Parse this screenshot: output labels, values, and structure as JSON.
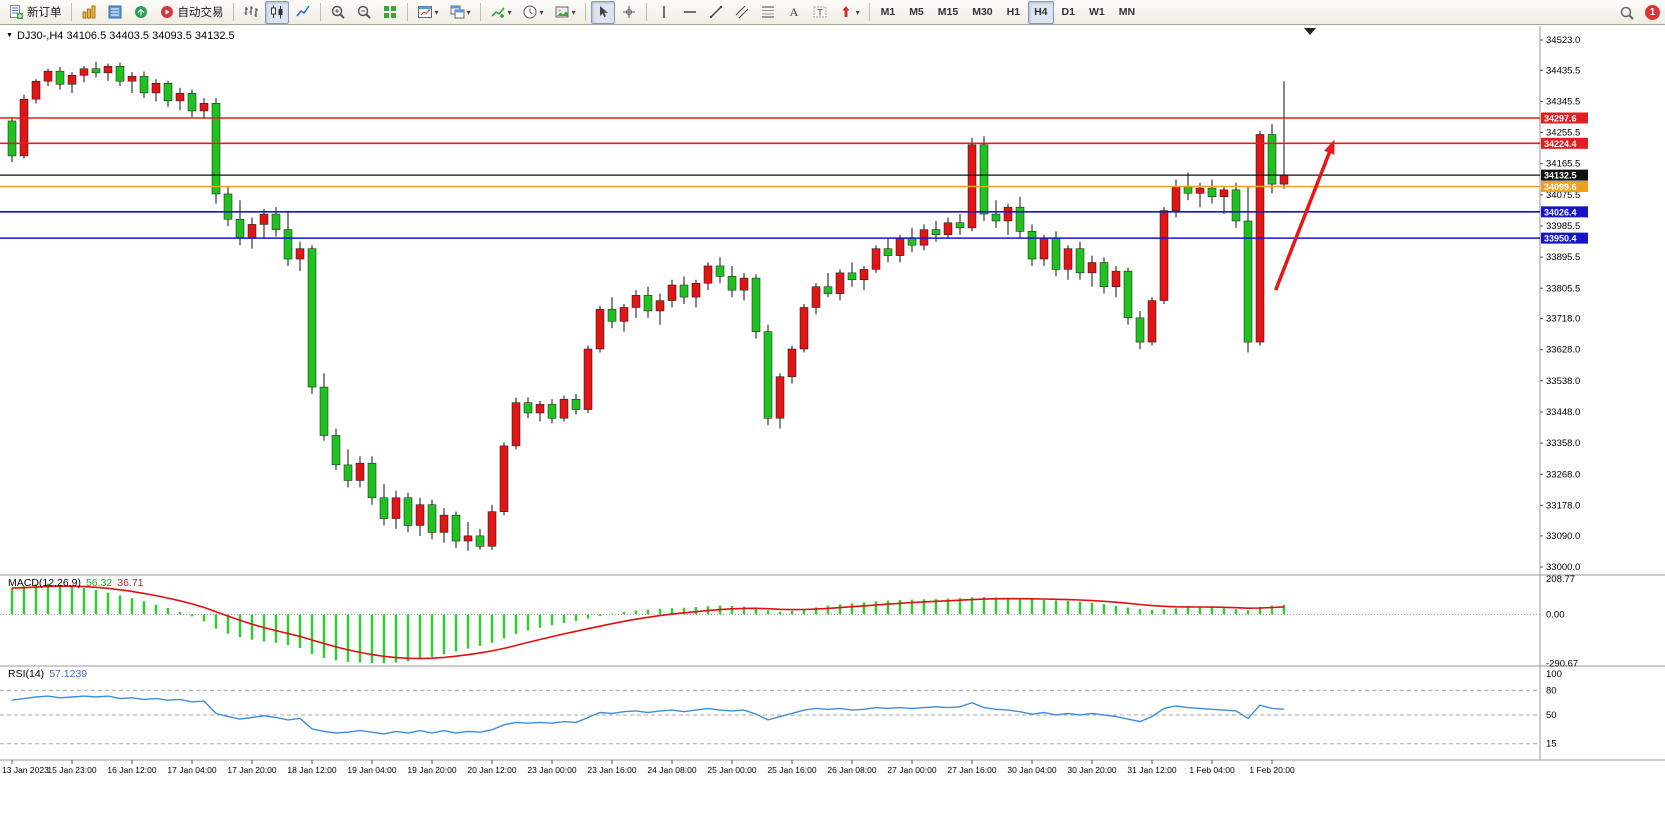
{
  "toolbar": {
    "badge_count": "1",
    "active_timeframe": "H4",
    "timeframes": [
      "M1",
      "M5",
      "M15",
      "M30",
      "H1",
      "H4",
      "D1",
      "W1",
      "MN"
    ],
    "groups": [
      {
        "items": [
          {
            "name": "new-order-button",
            "icon": "new-order",
            "label": "新订单"
          }
        ]
      },
      {
        "items": [
          {
            "name": "chart-window-button",
            "icon": "chart-window"
          },
          {
            "name": "market-watch-button",
            "icon": "market-watch"
          },
          {
            "name": "navigator-button",
            "icon": "navigator"
          },
          {
            "name": "auto-trading-button",
            "icon": "auto-trading",
            "label": "自动交易"
          }
        ]
      },
      {
        "items": [
          {
            "name": "bar-chart-button",
            "icon": "bar-chart"
          },
          {
            "name": "candlestick-chart-button",
            "icon": "candlestick-chart",
            "active": true
          },
          {
            "name": "line-chart-button",
            "icon": "line-chart"
          }
        ]
      },
      {
        "items": [
          {
            "name": "zoom-in-button",
            "icon": "zoom-in"
          },
          {
            "name": "zoom-out-button",
            "icon": "zoom-out"
          },
          {
            "name": "tile-windows-button",
            "icon": "tile-windows"
          }
        ]
      },
      {
        "items": [
          {
            "name": "new-chart-button",
            "icon": "new-chart",
            "dropdown": true
          },
          {
            "name": "profiles-button",
            "icon": "cascade-windows",
            "dropdown": true
          }
        ]
      },
      {
        "items": [
          {
            "name": "indicators-button",
            "icon": "indicators",
            "dropdown": true
          },
          {
            "name": "periods-button",
            "icon": "periods",
            "dropdown": true
          },
          {
            "name": "templates-button",
            "icon": "templates",
            "dropdown": true
          }
        ]
      },
      {
        "items": [
          {
            "name": "cursor-button",
            "icon": "cursor",
            "active": true
          },
          {
            "name": "crosshair-button",
            "icon": "crosshair"
          }
        ]
      },
      {
        "items": [
          {
            "name": "vertical-line-button",
            "icon": "vertical-line"
          },
          {
            "name": "horizontal-line-button",
            "icon": "horizontal-line"
          },
          {
            "name": "trendline-button",
            "icon": "trendline"
          },
          {
            "name": "channel-button",
            "icon": "channel"
          },
          {
            "name": "fibonacci-button",
            "icon": "fibonacci"
          },
          {
            "name": "text-button",
            "icon": "text"
          },
          {
            "name": "label-button",
            "icon": "label"
          },
          {
            "name": "arrows-button",
            "icon": "arrows",
            "dropdown": true
          }
        ]
      },
      {
        "type": "timeframes"
      }
    ]
  },
  "titles": {
    "chart": "DJ30-,H4  34106.5 34403.5 34093.5 34132.5",
    "macd_label": "MACD(12,26,9)",
    "macd_value_main": "56.32",
    "macd_value_signal": "36.71",
    "rsi_label": "RSI(14)",
    "rsi_value": "57.1239"
  },
  "chart_data": {
    "type": "candlestick",
    "symbol": "DJ30-",
    "period": "H4",
    "ohlc_display": {
      "open": 34106.5,
      "high": 34403.5,
      "low": 34093.5,
      "close": 34132.5
    },
    "y_range": [
      33000,
      34523
    ],
    "price_axis": [
      "34523.0",
      "34435.5",
      "34345.5",
      "34255.5",
      "34165.5",
      "34075.5",
      "33985.5",
      "33895.5",
      "33805.5",
      "33718.0",
      "33628.0",
      "33538.0",
      "33448.0",
      "33358.0",
      "33268.0",
      "33178.0",
      "33090.0",
      "33000.0"
    ],
    "time_label_step": 5,
    "time_labels": [
      "13 Jan 2023",
      "15 Jan 23:00",
      "16 Jan 12:00",
      "17 Jan 04:00",
      "17 Jan 20:00",
      "18 Jan 12:00",
      "19 Jan 04:00",
      "19 Jan 20:00",
      "20 Jan 12:00",
      "23 Jan 00:00",
      "23 Jan 16:00",
      "24 Jan 08:00",
      "25 Jan 00:00",
      "25 Jan 16:00",
      "26 Jan 08:00",
      "27 Jan 00:00",
      "27 Jan 16:00",
      "30 Jan 04:00",
      "30 Jan 20:00",
      "31 Jan 12:00",
      "1 Feb 04:00",
      "1 Feb 20:00"
    ],
    "candles": [
      [
        34289,
        34300,
        34170,
        34188
      ],
      [
        34188,
        34365,
        34180,
        34352
      ],
      [
        34352,
        34410,
        34340,
        34404
      ],
      [
        34404,
        34440,
        34390,
        34433
      ],
      [
        34433,
        34445,
        34380,
        34395
      ],
      [
        34395,
        34430,
        34370,
        34421
      ],
      [
        34421,
        34448,
        34400,
        34440
      ],
      [
        34440,
        34460,
        34415,
        34428
      ],
      [
        34428,
        34455,
        34405,
        34447
      ],
      [
        34447,
        34458,
        34390,
        34404
      ],
      [
        34404,
        34430,
        34370,
        34418
      ],
      [
        34418,
        34432,
        34355,
        34370
      ],
      [
        34370,
        34410,
        34345,
        34398
      ],
      [
        34398,
        34405,
        34330,
        34347
      ],
      [
        34347,
        34385,
        34320,
        34369
      ],
      [
        34369,
        34380,
        34300,
        34318
      ],
      [
        34318,
        34355,
        34295,
        34340
      ],
      [
        34340,
        34355,
        34050,
        34078
      ],
      [
        34078,
        34100,
        33985,
        34005
      ],
      [
        34005,
        34060,
        33930,
        33950
      ],
      [
        33950,
        34010,
        33920,
        33990
      ],
      [
        33990,
        34035,
        33950,
        34020
      ],
      [
        34020,
        34040,
        33955,
        33975
      ],
      [
        33975,
        34030,
        33870,
        33890
      ],
      [
        33890,
        33940,
        33855,
        33920
      ],
      [
        33920,
        33930,
        33500,
        33520
      ],
      [
        33520,
        33560,
        33365,
        33380
      ],
      [
        33380,
        33400,
        33280,
        33295
      ],
      [
        33295,
        33340,
        33230,
        33250
      ],
      [
        33250,
        33320,
        33230,
        33300
      ],
      [
        33300,
        33320,
        33180,
        33200
      ],
      [
        33200,
        33240,
        33120,
        33140
      ],
      [
        33140,
        33220,
        33110,
        33200
      ],
      [
        33200,
        33215,
        33100,
        33120
      ],
      [
        33120,
        33200,
        33090,
        33180
      ],
      [
        33180,
        33195,
        33080,
        33100
      ],
      [
        33100,
        33170,
        33070,
        33150
      ],
      [
        33150,
        33160,
        33055,
        33075
      ],
      [
        33075,
        33130,
        33047,
        33090
      ],
      [
        33090,
        33110,
        33050,
        33060
      ],
      [
        33060,
        33180,
        33050,
        33160
      ],
      [
        33160,
        33360,
        33150,
        33350
      ],
      [
        33350,
        33490,
        33340,
        33475
      ],
      [
        33475,
        33490,
        33430,
        33445
      ],
      [
        33445,
        33480,
        33420,
        33470
      ],
      [
        33470,
        33485,
        33415,
        33430
      ],
      [
        33430,
        33495,
        33420,
        33485
      ],
      [
        33485,
        33500,
        33440,
        33455
      ],
      [
        33455,
        33640,
        33445,
        33630
      ],
      [
        33630,
        33755,
        33620,
        33745
      ],
      [
        33745,
        33780,
        33690,
        33710
      ],
      [
        33710,
        33760,
        33680,
        33750
      ],
      [
        33750,
        33800,
        33720,
        33785
      ],
      [
        33785,
        33810,
        33720,
        33740
      ],
      [
        33740,
        33790,
        33700,
        33770
      ],
      [
        33770,
        33830,
        33750,
        33815
      ],
      [
        33815,
        33840,
        33760,
        33780
      ],
      [
        33780,
        33830,
        33750,
        33820
      ],
      [
        33820,
        33880,
        33800,
        33870
      ],
      [
        33870,
        33895,
        33820,
        33840
      ],
      [
        33840,
        33870,
        33780,
        33800
      ],
      [
        33800,
        33850,
        33770,
        33835
      ],
      [
        33835,
        33845,
        33660,
        33680
      ],
      [
        33680,
        33700,
        33410,
        33430
      ],
      [
        33430,
        33560,
        33400,
        33550
      ],
      [
        33550,
        33640,
        33530,
        33630
      ],
      [
        33630,
        33760,
        33620,
        33750
      ],
      [
        33750,
        33820,
        33730,
        33810
      ],
      [
        33810,
        33850,
        33780,
        33790
      ],
      [
        33790,
        33860,
        33770,
        33850
      ],
      [
        33850,
        33880,
        33810,
        33830
      ],
      [
        33830,
        33870,
        33800,
        33860
      ],
      [
        33860,
        33930,
        33850,
        33920
      ],
      [
        33920,
        33950,
        33880,
        33900
      ],
      [
        33900,
        33960,
        33880,
        33950
      ],
      [
        33950,
        33980,
        33910,
        33930
      ],
      [
        33930,
        33990,
        33915,
        33975
      ],
      [
        33975,
        34000,
        33940,
        33960
      ],
      [
        33960,
        34010,
        33950,
        33995
      ],
      [
        33995,
        34020,
        33960,
        33980
      ],
      [
        33980,
        34240,
        33970,
        34220
      ],
      [
        34220,
        34245,
        34000,
        34020
      ],
      [
        34020,
        34060,
        33980,
        34000
      ],
      [
        34000,
        34050,
        33960,
        34040
      ],
      [
        34040,
        34070,
        33950,
        33970
      ],
      [
        33970,
        33990,
        33870,
        33890
      ],
      [
        33890,
        33960,
        33870,
        33950
      ],
      [
        33950,
        33970,
        33840,
        33860
      ],
      [
        33860,
        33930,
        33830,
        33920
      ],
      [
        33920,
        33940,
        33830,
        33850
      ],
      [
        33850,
        33900,
        33810,
        33880
      ],
      [
        33880,
        33895,
        33790,
        33810
      ],
      [
        33810,
        33870,
        33780,
        33855
      ],
      [
        33855,
        33865,
        33700,
        33720
      ],
      [
        33720,
        33740,
        33630,
        33650
      ],
      [
        33650,
        33780,
        33640,
        33770
      ],
      [
        33770,
        34040,
        33760,
        34030
      ],
      [
        34030,
        34120,
        34010,
        34100
      ],
      [
        34100,
        34140,
        34060,
        34080
      ],
      [
        34080,
        34110,
        34040,
        34095
      ],
      [
        34095,
        34120,
        34050,
        34070
      ],
      [
        34070,
        34100,
        34020,
        34090
      ],
      [
        34090,
        34110,
        33980,
        34000
      ],
      [
        34000,
        34100,
        33620,
        33650
      ],
      [
        33650,
        34260,
        33640,
        34250
      ],
      [
        34250,
        34280,
        34080,
        34106.5
      ],
      [
        34106.5,
        34403.5,
        34093.5,
        34132.5
      ]
    ],
    "hlines": [
      {
        "name": "resistance-line-1",
        "price": 34297.6,
        "label": "34297.6",
        "color": "#e02020",
        "tag_bg": "#e02020",
        "width": 1.6
      },
      {
        "name": "resistance-line-2",
        "price": 34224.4,
        "label": "34224.4",
        "color": "#e02020",
        "tag_bg": "#e02020",
        "width": 1.6
      },
      {
        "name": "bid-price-line",
        "price": 34132.5,
        "label": "34132.5",
        "color": "#111111",
        "tag_bg": "#111111",
        "width": 1.2
      },
      {
        "name": "pivot-line",
        "price": 34099.6,
        "label": "34099.6",
        "color": "#f0a11c",
        "tag_bg": "#f0a11c",
        "width": 1.6
      },
      {
        "name": "support-line-1",
        "price": 34026.4,
        "label": "34026.4",
        "color": "#1515c8",
        "tag_bg": "#1515c8",
        "width": 1.6
      },
      {
        "name": "support-line-2",
        "price": 33950.4,
        "label": "33950.4",
        "color": "#1515c8",
        "tag_bg": "#1515c8",
        "width": 1.6
      }
    ],
    "arrow": {
      "from_idx": 105.3,
      "from_price": 33800,
      "to_idx": 110.2,
      "to_price": 34235,
      "color": "#e81717"
    },
    "indicators": {
      "macd": {
        "title": "MACD(12,26,9)",
        "value_main": 56.32,
        "value_signal": 36.71,
        "axis": [
          {
            "label": "208.77",
            "value": 208.77
          },
          {
            "label": "0.00",
            "value": 0
          },
          {
            "label": "-290.67",
            "value": -290.67
          }
        ],
        "values": [
          155,
          168,
          176,
          181,
          174,
          165,
          155,
          144,
          128,
          112,
          96,
          78,
          58,
          38,
          14,
          -12,
          -42,
          -85,
          -115,
          -135,
          -150,
          -160,
          -168,
          -182,
          -200,
          -235,
          -258,
          -272,
          -281,
          -286,
          -289,
          -290,
          -286,
          -278,
          -266,
          -252,
          -236,
          -219,
          -203,
          -187,
          -168,
          -142,
          -116,
          -95,
          -79,
          -64,
          -51,
          -39,
          -25,
          -10,
          4,
          14,
          22,
          28,
          33,
          36,
          39,
          43,
          48,
          52,
          50,
          45,
          37,
          24,
          16,
          21,
          31,
          41,
          51,
          59,
          65,
          71,
          77,
          81,
          85,
          87,
          89,
          91,
          93,
          96,
          101,
          103,
          100,
          96,
          92,
          88,
          85,
          82,
          80,
          75,
          68,
          60,
          50,
          40,
          30,
          26,
          29,
          35,
          40,
          42,
          40,
          36,
          30,
          24,
          44,
          52,
          56.32
        ]
      },
      "rsi": {
        "title": "RSI(14)",
        "value": 57.1239,
        "levels": [
          {
            "label": "100",
            "value": 100
          },
          {
            "label": "80",
            "value": 80
          },
          {
            "label": "50",
            "value": 50
          },
          {
            "label": "15",
            "value": 15
          }
        ],
        "values": [
          68,
          70,
          72,
          73,
          71,
          72,
          73,
          72,
          73,
          70,
          71,
          69,
          70,
          68,
          69,
          66,
          67,
          52,
          48,
          45,
          47,
          49,
          47,
          44,
          46,
          33,
          30,
          28,
          29,
          31,
          29,
          27,
          30,
          28,
          31,
          28,
          31,
          28,
          30,
          29,
          32,
          38,
          41,
          40,
          41,
          40,
          42,
          41,
          47,
          53,
          52,
          54,
          55,
          53,
          55,
          56,
          54,
          56,
          58,
          56,
          55,
          56,
          51,
          44,
          48,
          52,
          56,
          58,
          57,
          58,
          56,
          57,
          59,
          58,
          59,
          58,
          59,
          60,
          59,
          60,
          65,
          59,
          57,
          56,
          54,
          51,
          53,
          50,
          52,
          50,
          52,
          50,
          48,
          45,
          42,
          48,
          58,
          61,
          59,
          58,
          57,
          56,
          55,
          46,
          62,
          58,
          57.12
        ]
      }
    },
    "colors": {
      "up": "#e01616",
      "down": "#22c122",
      "wick": "#111111",
      "macd_hist": "#2ecc2e",
      "macd_signal": "#e01010",
      "rsi": "#3f8edc",
      "arrow": "#e81717"
    }
  }
}
